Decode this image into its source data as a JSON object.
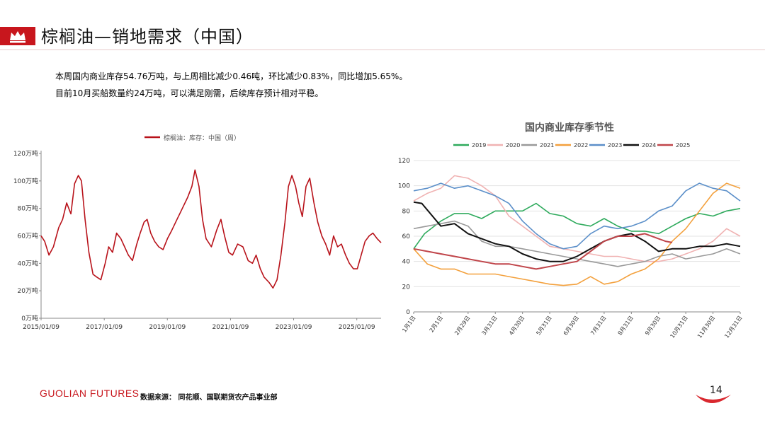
{
  "page": {
    "title": "棕榈油—销地需求（中国）",
    "summary_lines": [
      "本周国内商业库存54.76万吨，与上周相比减少0.46吨，环比减少0.83%，同比增加5.65%。",
      "目前10月买船数量约24万吨，可以满足刚需，后续库存预计相对平稳。"
    ],
    "footer_brand": "GUOLIAN FUTURES",
    "footer_source": "数据来源：  同花顺、国联期货农产品事业部",
    "page_number": "14",
    "accent_color": "#c8161d",
    "icon": "crown-icon"
  },
  "chart_data": [
    {
      "type": "line",
      "legend": [
        "棕榈油：库存：中国（周）"
      ],
      "legend_position": "top-center",
      "y_tick_labels": [
        "0万吨",
        "20万吨",
        "40万吨",
        "60万吨",
        "80万吨",
        "100万吨",
        "120万吨"
      ],
      "x_tick_labels": [
        "2015/01/09",
        "2017/01/09",
        "2019/01/09",
        "2021/01/09",
        "2023/01/09",
        "2025/01/09"
      ],
      "ylim": [
        0,
        120
      ],
      "xlim": [
        "2015-01-09",
        "2025-10-17"
      ],
      "grid": false,
      "series": [
        {
          "name": "棕榈油：库存：中国（周）",
          "color": "#b8121a",
          "points": [
            [
              "2015-01-09",
              60
            ],
            [
              "2015-02-20",
              56
            ],
            [
              "2015-04-10",
              46
            ],
            [
              "2015-06-01",
              52
            ],
            [
              "2015-08-01",
              66
            ],
            [
              "2015-09-15",
              72
            ],
            [
              "2015-11-01",
              84
            ],
            [
              "2015-12-20",
              76
            ],
            [
              "2016-02-01",
              98
            ],
            [
              "2016-03-15",
              104
            ],
            [
              "2016-04-20",
              100
            ],
            [
              "2016-06-01",
              72
            ],
            [
              "2016-07-15",
              48
            ],
            [
              "2016-09-01",
              32
            ],
            [
              "2016-10-15",
              30
            ],
            [
              "2016-12-01",
              28
            ],
            [
              "2017-01-20",
              40
            ],
            [
              "2017-03-01",
              52
            ],
            [
              "2017-04-15",
              48
            ],
            [
              "2017-06-01",
              62
            ],
            [
              "2017-07-20",
              58
            ],
            [
              "2017-09-01",
              52
            ],
            [
              "2017-10-15",
              46
            ],
            [
              "2017-12-01",
              42
            ],
            [
              "2018-01-20",
              54
            ],
            [
              "2018-03-01",
              62
            ],
            [
              "2018-04-15",
              70
            ],
            [
              "2018-05-20",
              72
            ],
            [
              "2018-07-01",
              62
            ],
            [
              "2018-08-15",
              56
            ],
            [
              "2018-10-01",
              52
            ],
            [
              "2018-11-20",
              50
            ],
            [
              "2019-01-10",
              58
            ],
            [
              "2019-03-01",
              64
            ],
            [
              "2019-05-01",
              72
            ],
            [
              "2019-07-01",
              80
            ],
            [
              "2019-09-01",
              88
            ],
            [
              "2019-10-20",
              96
            ],
            [
              "2019-11-25",
              108
            ],
            [
              "2020-01-10",
              96
            ],
            [
              "2020-02-20",
              72
            ],
            [
              "2020-04-01",
              58
            ],
            [
              "2020-06-01",
              52
            ],
            [
              "2020-08-01",
              64
            ],
            [
              "2020-09-20",
              72
            ],
            [
              "2020-11-01",
              60
            ],
            [
              "2020-12-20",
              48
            ],
            [
              "2021-02-01",
              46
            ],
            [
              "2021-04-01",
              54
            ],
            [
              "2021-06-01",
              52
            ],
            [
              "2021-08-01",
              42
            ],
            [
              "2021-09-20",
              40
            ],
            [
              "2021-11-01",
              46
            ],
            [
              "2021-12-20",
              36
            ],
            [
              "2022-02-01",
              30
            ],
            [
              "2022-04-01",
              26
            ],
            [
              "2022-05-15",
              22
            ],
            [
              "2022-07-01",
              28
            ],
            [
              "2022-08-15",
              46
            ],
            [
              "2022-10-01",
              70
            ],
            [
              "2022-11-10",
              96
            ],
            [
              "2022-12-20",
              104
            ],
            [
              "2023-02-01",
              96
            ],
            [
              "2023-03-10",
              84
            ],
            [
              "2023-04-20",
              74
            ],
            [
              "2023-06-01",
              96
            ],
            [
              "2023-07-15",
              102
            ],
            [
              "2023-09-01",
              84
            ],
            [
              "2023-10-15",
              70
            ],
            [
              "2023-12-01",
              60
            ],
            [
              "2024-01-15",
              54
            ],
            [
              "2024-03-01",
              46
            ],
            [
              "2024-04-15",
              60
            ],
            [
              "2024-06-01",
              52
            ],
            [
              "2024-07-15",
              54
            ],
            [
              "2024-09-01",
              46
            ],
            [
              "2024-10-15",
              40
            ],
            [
              "2024-12-01",
              36
            ],
            [
              "2025-01-15",
              36
            ],
            [
              "2025-03-01",
              46
            ],
            [
              "2025-04-15",
              56
            ],
            [
              "2025-06-01",
              60
            ],
            [
              "2025-07-15",
              62
            ],
            [
              "2025-09-01",
              58
            ],
            [
              "2025-10-17",
              55
            ]
          ]
        }
      ]
    },
    {
      "type": "line",
      "title": "国内商业库存季节性",
      "legend_position": "top",
      "legend": [
        "2019",
        "2020",
        "2021",
        "2022",
        "2023",
        "2024",
        "2025"
      ],
      "y_tick_labels": [
        "0",
        "20",
        "40",
        "60",
        "80",
        "100",
        "120"
      ],
      "x_tick_labels": [
        "1月1日",
        "2月1日",
        "2月29日",
        "3月31日",
        "4月30日",
        "5月31日",
        "6月30日",
        "7月31日",
        "8月31日",
        "9月30日",
        "10月31日",
        "11月30日",
        "12月31日"
      ],
      "ylim": [
        0,
        120
      ],
      "grid": true,
      "series": [
        {
          "name": "2019",
          "color": "#2eaa5c",
          "x": [
            0,
            0.4,
            1,
            1.5,
            2,
            2.5,
            3,
            3.5,
            4,
            4.5,
            5,
            5.5,
            6,
            6.5,
            7,
            7.5,
            8,
            8.5,
            9,
            9.5,
            10,
            10.5,
            11,
            11.5,
            12
          ],
          "y": [
            50,
            62,
            72,
            78,
            78,
            74,
            80,
            80,
            80,
            86,
            78,
            76,
            70,
            68,
            74,
            68,
            64,
            64,
            62,
            68,
            74,
            78,
            76,
            80,
            82
          ]
        },
        {
          "name": "2020",
          "color": "#f0b2b2",
          "x": [
            0,
            0.5,
            1,
            1.5,
            2,
            2.5,
            3,
            3.5,
            4,
            4.5,
            5,
            5.5,
            6,
            6.5,
            7,
            7.5,
            8,
            8.5,
            9,
            9.5,
            10,
            10.5,
            11,
            11.5,
            12
          ],
          "y": [
            88,
            94,
            98,
            108,
            106,
            100,
            92,
            76,
            68,
            60,
            52,
            50,
            48,
            46,
            44,
            44,
            42,
            40,
            40,
            42,
            46,
            50,
            56,
            66,
            60
          ]
        },
        {
          "name": "2021",
          "color": "#999999",
          "x": [
            0,
            0.5,
            1,
            1.5,
            2,
            2.5,
            3,
            3.5,
            4,
            4.5,
            5,
            5.5,
            6,
            6.5,
            7,
            7.5,
            8,
            8.5,
            9,
            9.5,
            10,
            10.5,
            11,
            11.5,
            12
          ],
          "y": [
            66,
            68,
            70,
            72,
            68,
            56,
            52,
            52,
            50,
            48,
            46,
            44,
            42,
            40,
            38,
            36,
            38,
            40,
            44,
            46,
            42,
            44,
            46,
            50,
            46
          ]
        },
        {
          "name": "2022",
          "color": "#f3a03c",
          "x": [
            0,
            0.5,
            1,
            1.5,
            2,
            2.5,
            3,
            3.5,
            4,
            4.5,
            5,
            5.5,
            6,
            6.5,
            7,
            7.5,
            8,
            8.5,
            9,
            9.5,
            10,
            10.5,
            11,
            11.5,
            12
          ],
          "y": [
            50,
            38,
            34,
            34,
            30,
            30,
            30,
            28,
            26,
            24,
            22,
            21,
            22,
            28,
            22,
            24,
            30,
            34,
            42,
            56,
            66,
            80,
            94,
            102,
            98
          ]
        },
        {
          "name": "2023",
          "color": "#5b8fc9",
          "x": [
            0,
            0.5,
            1,
            1.5,
            2,
            2.5,
            3,
            3.5,
            4,
            4.5,
            5,
            5.5,
            6,
            6.5,
            7,
            7.5,
            8,
            8.5,
            9,
            9.5,
            10,
            10.5,
            11,
            11.5,
            12
          ],
          "y": [
            96,
            98,
            102,
            98,
            100,
            96,
            92,
            86,
            72,
            62,
            54,
            50,
            52,
            62,
            68,
            66,
            68,
            72,
            80,
            84,
            96,
            102,
            98,
            96,
            88
          ]
        },
        {
          "name": "2024",
          "color": "#111111",
          "x": [
            0,
            0.3,
            1,
            1.5,
            2,
            2.5,
            3,
            3.5,
            4,
            4.5,
            5,
            5.5,
            6,
            6.5,
            7,
            7.5,
            8,
            8.5,
            9,
            9.5,
            10,
            10.5,
            11,
            11.5,
            12
          ],
          "y": [
            87,
            86,
            68,
            70,
            62,
            58,
            54,
            52,
            46,
            42,
            40,
            40,
            44,
            50,
            56,
            60,
            62,
            56,
            48,
            50,
            50,
            52,
            52,
            54,
            52
          ]
        },
        {
          "name": "2025",
          "color": "#c0454a",
          "x": [
            0,
            0.5,
            1,
            1.5,
            2,
            2.5,
            3,
            3.5,
            4,
            4.5,
            5,
            5.5,
            6,
            6.5,
            7,
            7.5,
            8,
            8.5,
            9,
            9.25,
            9.5
          ],
          "y": [
            50,
            48,
            46,
            44,
            42,
            40,
            38,
            38,
            36,
            34,
            36,
            38,
            40,
            48,
            56,
            60,
            60,
            62,
            58,
            56,
            55
          ]
        }
      ]
    }
  ]
}
